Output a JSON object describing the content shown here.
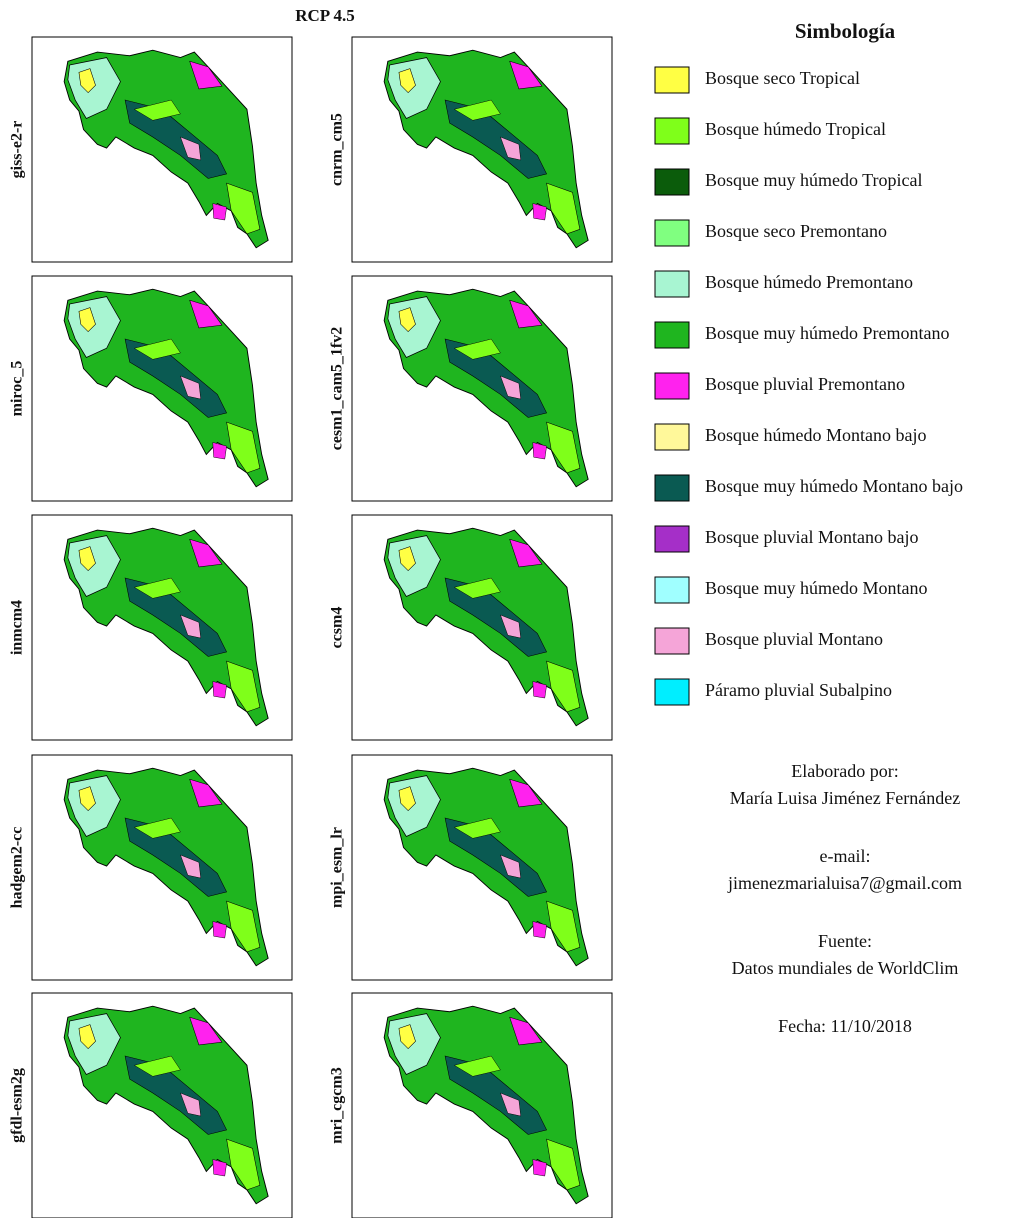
{
  "title": "RCP 4.5",
  "panels": [
    {
      "label": "giss-e2-r"
    },
    {
      "label": "cnrm_cm5"
    },
    {
      "label": "miroc_5"
    },
    {
      "label": "cesm1_cam5_1fv2"
    },
    {
      "label": "inmcm4"
    },
    {
      "label": "ccsm4"
    },
    {
      "label": "hadgem2-cc"
    },
    {
      "label": "mpi_esm_lr"
    },
    {
      "label": "gfdl-esm2g"
    },
    {
      "label": "mri_cgcm3"
    }
  ],
  "legend": {
    "title": "Simbología",
    "items": [
      {
        "label": "Bosque seco Tropical",
        "color": "#ffff44"
      },
      {
        "label": "Bosque húmedo Tropical",
        "color": "#7fff1a"
      },
      {
        "label": "Bosque muy húmedo Tropical",
        "color": "#0b5c0b"
      },
      {
        "label": "Bosque seco Premontano",
        "color": "#80ff80"
      },
      {
        "label": "Bosque húmedo Premontano",
        "color": "#a8f5d2"
      },
      {
        "label": "Bosque muy húmedo Premontano",
        "color": "#1fb51f"
      },
      {
        "label": "Bosque pluvial Premontano",
        "color": "#ff22ee"
      },
      {
        "label": "Bosque húmedo Montano bajo",
        "color": "#fff89a"
      },
      {
        "label": "Bosque muy húmedo Montano bajo",
        "color": "#0a5a52"
      },
      {
        "label": "Bosque pluvial Montano bajo",
        "color": "#a52fc8"
      },
      {
        "label": "Bosque muy húmedo Montano",
        "color": "#a0ffff"
      },
      {
        "label": "Bosque pluvial Montano",
        "color": "#f5a5d8"
      },
      {
        "label": "Páramo pluvial Subalpino",
        "color": "#00eeff"
      }
    ]
  },
  "credits": {
    "made_by_label": "Elaborado por:",
    "author": "María Luisa Jiménez Fernández",
    "email_label": "e-mail:",
    "email": "jimenezmarialuisa7@gmail.com",
    "source_label": "Fuente:",
    "source": "Datos mundiales de WorldClim",
    "date": "Fecha: 11/10/2018"
  }
}
